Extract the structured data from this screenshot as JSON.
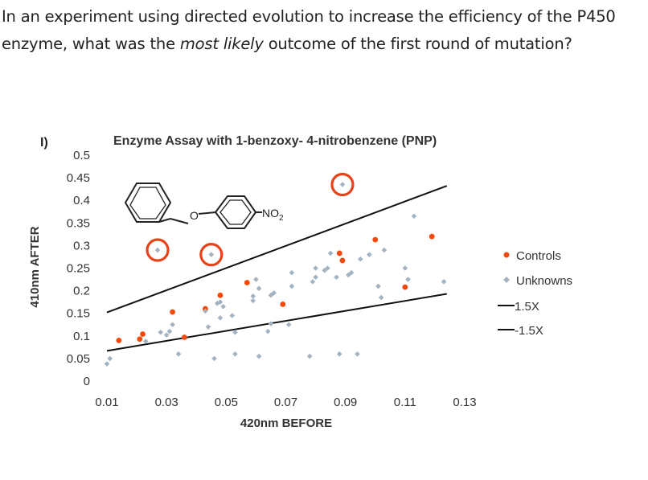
{
  "question": {
    "part1": "In an experiment using directed evolution to increase the efficiency of the P450 enzyme, what was the ",
    "emphasis": "most likely",
    "part2": " outcome of the first round of mutation?"
  },
  "figure": {
    "panel_label": "I)"
  },
  "colors": {
    "controls": "#f24a0c",
    "unknowns": "#a3b3c2",
    "line": "#111111",
    "circle": "#e8421a",
    "text": "#222222",
    "axis_text": "#333333"
  },
  "chart_data": {
    "type": "scatter",
    "title": "Enzyme Assay with 1-benzoxy- 4-nitrobenzene (PNP)",
    "xlabel": "420nm BEFORE",
    "ylabel": "410nm AFTER",
    "xlim": [
      0.01,
      0.13
    ],
    "ylim": [
      0,
      0.5
    ],
    "xticks": [
      "0.01",
      "0.03",
      "0.05",
      "0.07",
      "0.09",
      "0.11",
      "0.13"
    ],
    "yticks": [
      "0",
      "0.05",
      "0.1",
      "0.15",
      "0.2",
      "0.25",
      "0.3",
      "0.35",
      "0.4",
      "0.45",
      "0.5"
    ],
    "grid": false,
    "legend_position": "right",
    "structure_labels": {
      "oxygen": "O",
      "nitro": "NO",
      "nitro_subscript": "2"
    },
    "series": [
      {
        "name": "Controls",
        "marker": "circle",
        "points": [
          [
            0.014,
            0.09
          ],
          [
            0.021,
            0.093
          ],
          [
            0.022,
            0.104
          ],
          [
            0.032,
            0.153
          ],
          [
            0.036,
            0.097
          ],
          [
            0.043,
            0.16
          ],
          [
            0.048,
            0.19
          ],
          [
            0.057,
            0.218
          ],
          [
            0.069,
            0.17
          ],
          [
            0.088,
            0.283
          ],
          [
            0.089,
            0.267
          ],
          [
            0.1,
            0.313
          ],
          [
            0.11,
            0.208
          ],
          [
            0.119,
            0.32
          ]
        ]
      },
      {
        "name": "Unknowns",
        "marker": "diamond",
        "points": [
          [
            0.01,
            0.038
          ],
          [
            0.011,
            0.05
          ],
          [
            0.023,
            0.088
          ],
          [
            0.028,
            0.108
          ],
          [
            0.03,
            0.102
          ],
          [
            0.031,
            0.11
          ],
          [
            0.032,
            0.125
          ],
          [
            0.034,
            0.06
          ],
          [
            0.043,
            0.155
          ],
          [
            0.044,
            0.12
          ],
          [
            0.046,
            0.05
          ],
          [
            0.047,
            0.172
          ],
          [
            0.048,
            0.14
          ],
          [
            0.048,
            0.175
          ],
          [
            0.049,
            0.165
          ],
          [
            0.052,
            0.145
          ],
          [
            0.053,
            0.108
          ],
          [
            0.053,
            0.06
          ],
          [
            0.059,
            0.178
          ],
          [
            0.059,
            0.188
          ],
          [
            0.06,
            0.225
          ],
          [
            0.061,
            0.205
          ],
          [
            0.061,
            0.055
          ],
          [
            0.064,
            0.11
          ],
          [
            0.065,
            0.127
          ],
          [
            0.065,
            0.19
          ],
          [
            0.066,
            0.195
          ],
          [
            0.071,
            0.125
          ],
          [
            0.072,
            0.21
          ],
          [
            0.072,
            0.24
          ],
          [
            0.078,
            0.055
          ],
          [
            0.079,
            0.22
          ],
          [
            0.08,
            0.25
          ],
          [
            0.08,
            0.23
          ],
          [
            0.083,
            0.245
          ],
          [
            0.084,
            0.25
          ],
          [
            0.085,
            0.283
          ],
          [
            0.087,
            0.23
          ],
          [
            0.088,
            0.06
          ],
          [
            0.091,
            0.235
          ],
          [
            0.092,
            0.24
          ],
          [
            0.094,
            0.06
          ],
          [
            0.095,
            0.27
          ],
          [
            0.098,
            0.28
          ],
          [
            0.101,
            0.21
          ],
          [
            0.102,
            0.185
          ],
          [
            0.103,
            0.29
          ],
          [
            0.11,
            0.25
          ],
          [
            0.111,
            0.225
          ],
          [
            0.113,
            0.365
          ],
          [
            0.123,
            0.22
          ],
          [
            0.027,
            0.29
          ],
          [
            0.045,
            0.28
          ],
          [
            0.089,
            0.435
          ]
        ]
      }
    ],
    "trend_lines": [
      {
        "name": "1.5X",
        "x": [
          0.01,
          0.124
        ],
        "y": [
          0.152,
          0.432
        ]
      },
      {
        "name": "-1.5X",
        "x": [
          0.01,
          0.124
        ],
        "y": [
          0.067,
          0.193
        ]
      }
    ],
    "highlighted_points": [
      [
        0.027,
        0.29
      ],
      [
        0.045,
        0.28
      ],
      [
        0.089,
        0.435
      ]
    ]
  }
}
